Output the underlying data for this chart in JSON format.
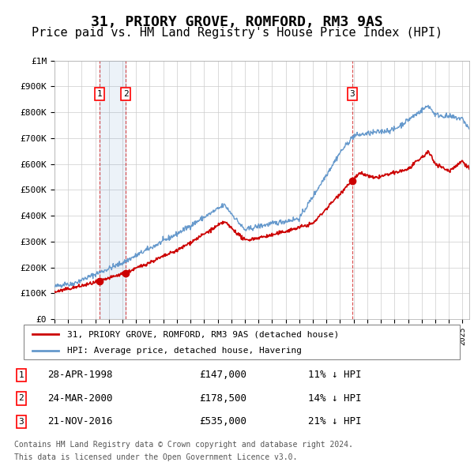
{
  "title": "31, PRIORY GROVE, ROMFORD, RM3 9AS",
  "subtitle": "Price paid vs. HM Land Registry's House Price Index (HPI)",
  "title_fontsize": 13,
  "subtitle_fontsize": 11,
  "hpi_color": "#6699cc",
  "price_color": "#cc0000",
  "background_color": "#ffffff",
  "grid_color": "#cccccc",
  "ylim": [
    0,
    1000000
  ],
  "yticks": [
    0,
    100000,
    200000,
    300000,
    400000,
    500000,
    600000,
    700000,
    800000,
    900000,
    1000000
  ],
  "xlim_start": 1995.0,
  "xlim_end": 2025.5,
  "transactions": [
    {
      "num": 1,
      "date": "28-APR-1998",
      "price": 147000,
      "year": 1998.32,
      "hpi_pct": "11% ↓ HPI"
    },
    {
      "num": 2,
      "date": "24-MAR-2000",
      "price": 178500,
      "year": 2000.23,
      "hpi_pct": "14% ↓ HPI"
    },
    {
      "num": 3,
      "date": "21-NOV-2016",
      "price": 535000,
      "year": 2016.89,
      "hpi_pct": "21% ↓ HPI"
    }
  ],
  "legend_label_price": "31, PRIORY GROVE, ROMFORD, RM3 9AS (detached house)",
  "legend_label_hpi": "HPI: Average price, detached house, Havering",
  "footnote_line1": "Contains HM Land Registry data © Crown copyright and database right 2024.",
  "footnote_line2": "This data is licensed under the Open Government Licence v3.0.",
  "xticks": [
    1995,
    1996,
    1997,
    1998,
    1999,
    2000,
    2001,
    2002,
    2003,
    2004,
    2005,
    2006,
    2007,
    2008,
    2009,
    2010,
    2011,
    2012,
    2013,
    2014,
    2015,
    2016,
    2017,
    2018,
    2019,
    2020,
    2021,
    2022,
    2023,
    2024,
    2025
  ]
}
